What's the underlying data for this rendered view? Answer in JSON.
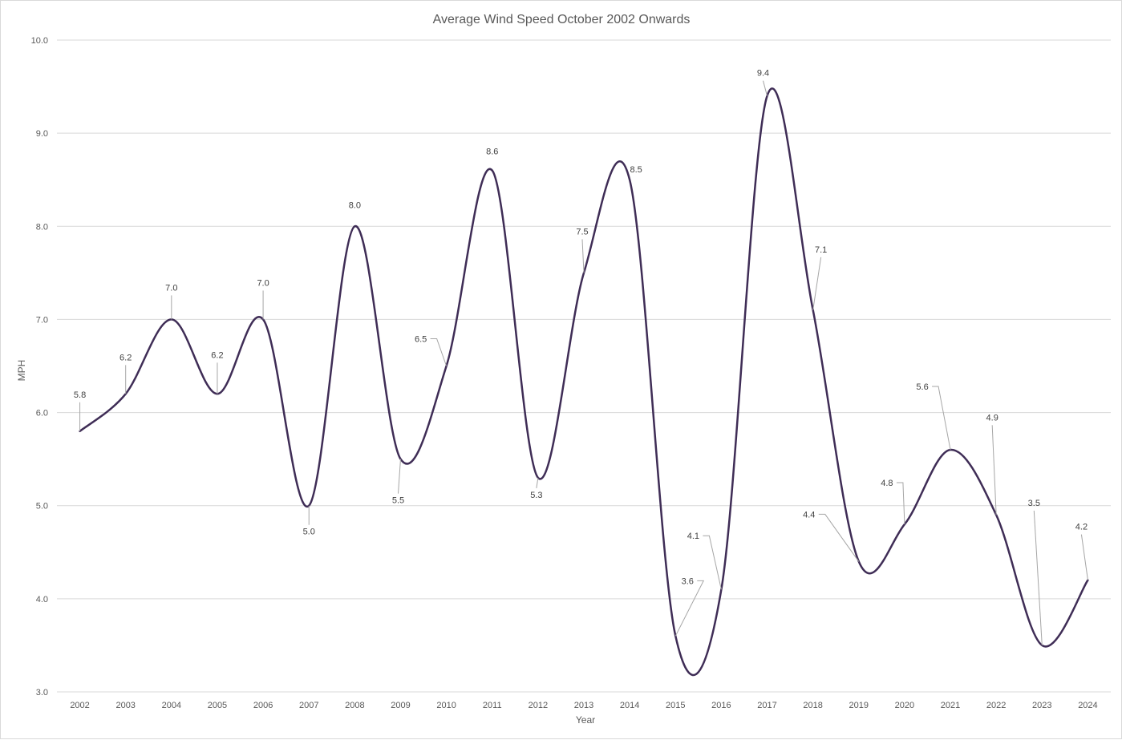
{
  "chart_data": {
    "type": "line",
    "title": "Average Wind Speed October 2002 Onwards",
    "xlabel": "Year",
    "ylabel": "MPH",
    "ylim": [
      3.0,
      10.0
    ],
    "y_ticks": [
      "3.0",
      "4.0",
      "5.0",
      "6.0",
      "7.0",
      "8.0",
      "9.0",
      "10.0"
    ],
    "grid": true,
    "smooth": true,
    "line_color": "#3f2d56",
    "categories": [
      "2002",
      "2003",
      "2004",
      "2005",
      "2006",
      "2007",
      "2008",
      "2009",
      "2010",
      "2011",
      "2012",
      "2013",
      "2014",
      "2015",
      "2016",
      "2017",
      "2018",
      "2019",
      "2020",
      "2021",
      "2022",
      "2023",
      "2024"
    ],
    "values": [
      5.8,
      6.2,
      7.0,
      6.2,
      7.0,
      5.0,
      8.0,
      5.5,
      6.5,
      8.6,
      5.3,
      7.5,
      8.5,
      3.6,
      4.1,
      9.4,
      7.1,
      4.4,
      4.8,
      5.6,
      4.9,
      3.5,
      4.2
    ],
    "data_labels": [
      "5.8",
      "6.2",
      "7.0",
      "6.2",
      "7.0",
      "5.0",
      "8.0",
      "5.5",
      "6.5",
      "8.6",
      "5.3",
      "7.5",
      "8.5",
      "3.6",
      "4.1",
      "9.4",
      "7.1",
      "4.4",
      "4.8",
      "5.6",
      "4.9",
      "3.5",
      "4.2"
    ]
  }
}
